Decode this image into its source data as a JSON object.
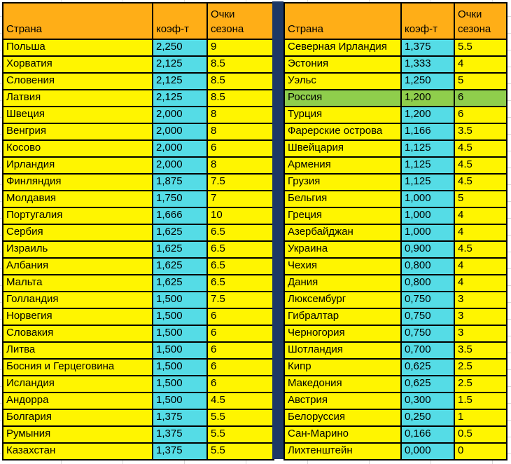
{
  "colors": {
    "canvas_bg": "#ffffff",
    "gridline": "#d9d9d9",
    "header_bg": "#ffae17",
    "cell_yellow": "#fff500",
    "cell_cyan": "#55dce6",
    "highlight": "#8fce4c",
    "divider": "#1d3866",
    "border": "#000000",
    "text": "#000000"
  },
  "headers": {
    "country": "Страна",
    "coef": "коэф-т",
    "points": "Очки сезона"
  },
  "left_table": {
    "rows": [
      {
        "country": "Польша",
        "coef": "2,250",
        "points": "9",
        "highlight": false
      },
      {
        "country": "Хорватия",
        "coef": "2,125",
        "points": "8.5",
        "highlight": false
      },
      {
        "country": "Словения",
        "coef": "2,125",
        "points": "8.5",
        "highlight": false
      },
      {
        "country": "Латвия",
        "coef": "2,125",
        "points": "8.5",
        "highlight": false
      },
      {
        "country": "Швеция",
        "coef": "2,000",
        "points": "8",
        "highlight": false
      },
      {
        "country": "Венгрия",
        "coef": "2,000",
        "points": "8",
        "highlight": false
      },
      {
        "country": "Косово",
        "coef": "2,000",
        "points": "6",
        "highlight": false
      },
      {
        "country": "Ирландия",
        "coef": "2,000",
        "points": "8",
        "highlight": false
      },
      {
        "country": "Финляндия",
        "coef": "1,875",
        "points": "7.5",
        "highlight": false
      },
      {
        "country": "Молдавия",
        "coef": "1,750",
        "points": "7",
        "highlight": false
      },
      {
        "country": "Португалия",
        "coef": "1,666",
        "points": "10",
        "highlight": false
      },
      {
        "country": "Сербия",
        "coef": "1,625",
        "points": "6.5",
        "highlight": false
      },
      {
        "country": "Израиль",
        "coef": "1,625",
        "points": "6.5",
        "highlight": false
      },
      {
        "country": "Албания",
        "coef": "1,625",
        "points": "6.5",
        "highlight": false
      },
      {
        "country": "Мальта",
        "coef": "1,625",
        "points": "6.5",
        "highlight": false
      },
      {
        "country": "Голландия",
        "coef": "1,500",
        "points": "7.5",
        "highlight": false
      },
      {
        "country": "Норвегия",
        "coef": "1,500",
        "points": "6",
        "highlight": false
      },
      {
        "country": "Словакия",
        "coef": "1,500",
        "points": "6",
        "highlight": false
      },
      {
        "country": "Литва",
        "coef": "1,500",
        "points": "6",
        "highlight": false
      },
      {
        "country": "Босния и Герцеговина",
        "coef": "1,500",
        "points": "6",
        "highlight": false
      },
      {
        "country": "Исландия",
        "coef": "1,500",
        "points": "6",
        "highlight": false
      },
      {
        "country": "Андорра",
        "coef": "1,500",
        "points": "4.5",
        "highlight": false
      },
      {
        "country": "Болгария",
        "coef": "1,375",
        "points": "5.5",
        "highlight": false
      },
      {
        "country": "Румыния",
        "coef": "1,375",
        "points": "5.5",
        "highlight": false
      },
      {
        "country": "Казахстан",
        "coef": "1,375",
        "points": "5.5",
        "highlight": false
      }
    ]
  },
  "right_table": {
    "rows": [
      {
        "country": "Северная Ирландия",
        "coef": "1,375",
        "points": "5.5",
        "highlight": false
      },
      {
        "country": "Эстония",
        "coef": "1,333",
        "points": "4",
        "highlight": false
      },
      {
        "country": "Уэльс",
        "coef": "1,250",
        "points": "5",
        "highlight": false
      },
      {
        "country": "Россия",
        "coef": "1,200",
        "points": "6",
        "highlight": true
      },
      {
        "country": "Турция",
        "coef": "1,200",
        "points": "6",
        "highlight": false
      },
      {
        "country": "Фарерские острова",
        "coef": "1,166",
        "points": "3.5",
        "highlight": false
      },
      {
        "country": "Швейцария",
        "coef": "1,125",
        "points": "4.5",
        "highlight": false
      },
      {
        "country": "Армения",
        "coef": "1,125",
        "points": "4.5",
        "highlight": false
      },
      {
        "country": "Грузия",
        "coef": "1,125",
        "points": "4.5",
        "highlight": false
      },
      {
        "country": "Бельгия",
        "coef": "1,000",
        "points": "5",
        "highlight": false
      },
      {
        "country": "Греция",
        "coef": "1,000",
        "points": "4",
        "highlight": false
      },
      {
        "country": "Азербайджан",
        "coef": "1,000",
        "points": "4",
        "highlight": false
      },
      {
        "country": "Украина",
        "coef": "0,900",
        "points": "4.5",
        "highlight": false
      },
      {
        "country": "Чехия",
        "coef": "0,800",
        "points": "4",
        "highlight": false
      },
      {
        "country": "Дания",
        "coef": "0,800",
        "points": "4",
        "highlight": false
      },
      {
        "country": "Люксембург",
        "coef": "0,750",
        "points": "3",
        "highlight": false
      },
      {
        "country": "Гибралтар",
        "coef": "0,750",
        "points": "3",
        "highlight": false
      },
      {
        "country": "Черногория",
        "coef": "0,750",
        "points": "3",
        "highlight": false
      },
      {
        "country": "Шотландия",
        "coef": "0,700",
        "points": "3.5",
        "highlight": false
      },
      {
        "country": "Кипр",
        "coef": "0,625",
        "points": "2.5",
        "highlight": false
      },
      {
        "country": "Македония",
        "coef": "0,625",
        "points": "2.5",
        "highlight": false
      },
      {
        "country": "Австрия",
        "coef": "0,300",
        "points": "1.5",
        "highlight": false
      },
      {
        "country": "Белоруссия",
        "coef": "0,250",
        "points": "1",
        "highlight": false
      },
      {
        "country": "Сан-Марино",
        "coef": "0,166",
        "points": "0.5",
        "highlight": false
      },
      {
        "country": "Лихтенштейн",
        "coef": "0,000",
        "points": "0",
        "highlight": false
      }
    ]
  }
}
